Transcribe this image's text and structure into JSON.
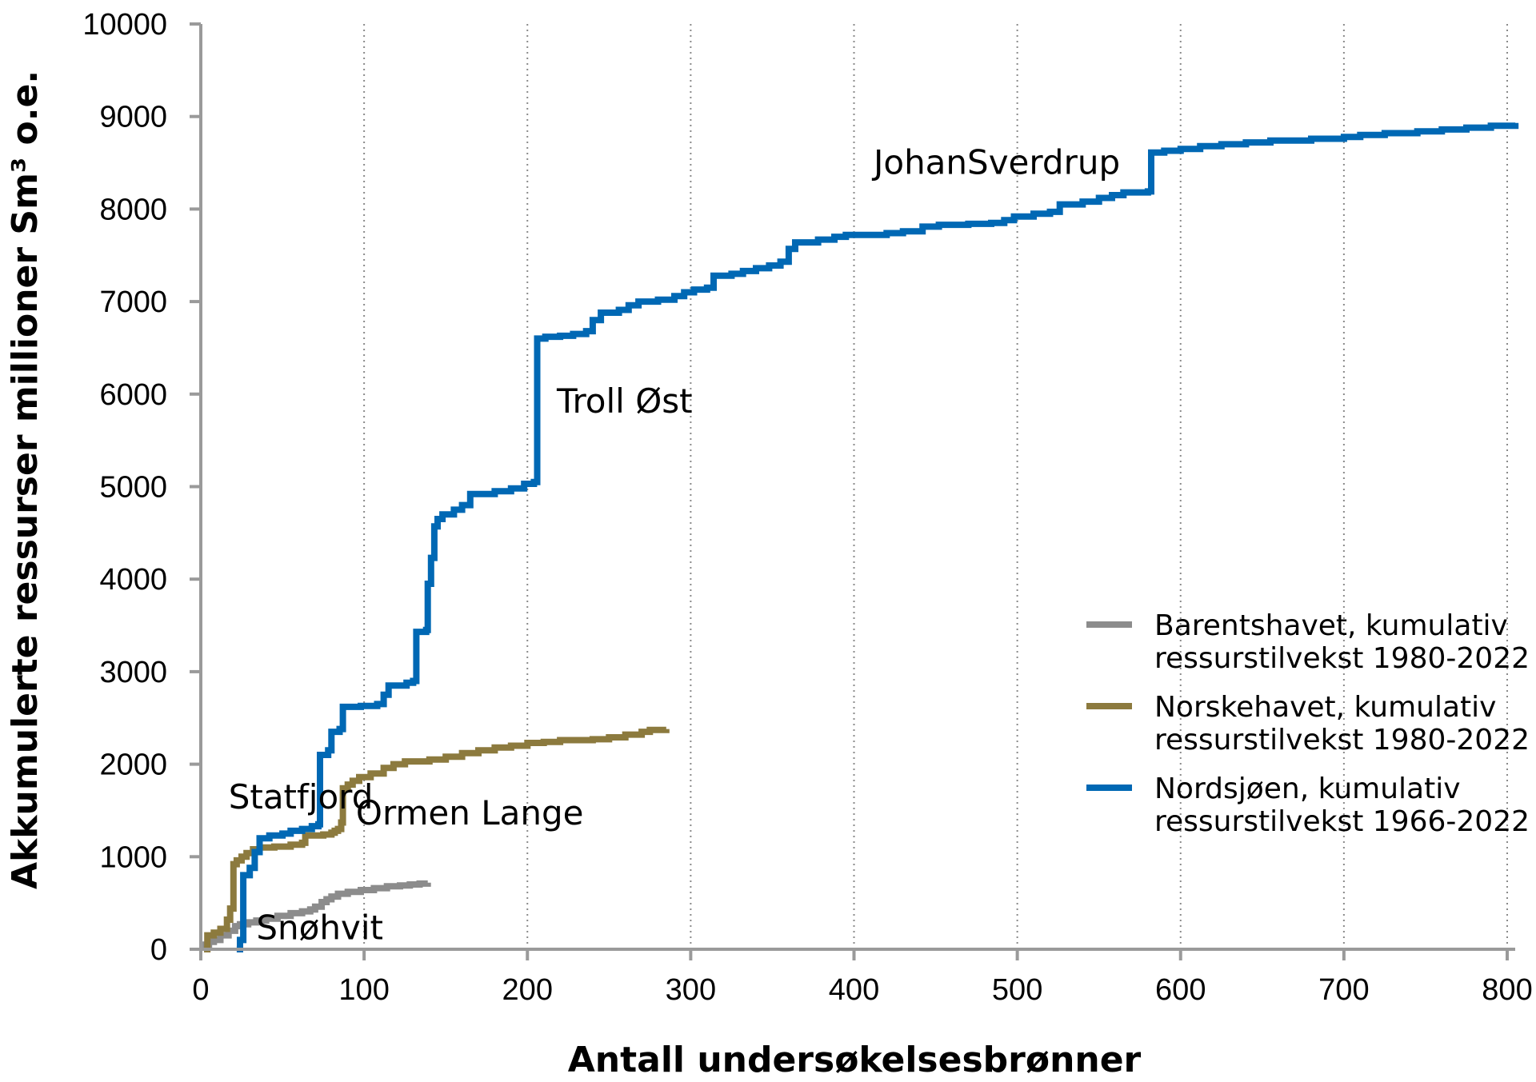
{
  "chart_data": {
    "type": "line",
    "title": "",
    "xlabel": "Antall undersøkelsesbrønner",
    "ylabel": "Akkumulerte ressurser millioner Sm³ o.e.",
    "xlim": [
      0,
      800
    ],
    "ylim": [
      0,
      10000
    ],
    "x_ticks": [
      "0",
      "100",
      "200",
      "300",
      "400",
      "500",
      "600",
      "700",
      "800"
    ],
    "y_ticks": [
      "0",
      "1000",
      "2000",
      "3000",
      "4000",
      "5000",
      "6000",
      "7000",
      "8000",
      "9000",
      "10000"
    ],
    "x_tick_values": [
      0,
      100,
      200,
      300,
      400,
      500,
      600,
      700,
      800
    ],
    "y_tick_values": [
      0,
      1000,
      2000,
      3000,
      4000,
      5000,
      6000,
      7000,
      8000,
      9000,
      10000
    ],
    "grid": "vertical-dotted",
    "legend_position": "right",
    "series": [
      {
        "name": "Barentshavet, kumulativ ressurstilvekst 1980-2022",
        "color": "#8c8c8c",
        "points": [
          [
            2,
            0
          ],
          [
            3,
            50
          ],
          [
            5,
            80
          ],
          [
            8,
            100
          ],
          [
            12,
            150
          ],
          [
            17,
            200
          ],
          [
            21,
            250
          ],
          [
            24,
            270
          ],
          [
            29,
            290
          ],
          [
            34,
            310
          ],
          [
            40,
            330
          ],
          [
            47,
            360
          ],
          [
            55,
            390
          ],
          [
            62,
            410
          ],
          [
            67,
            430
          ],
          [
            70,
            460
          ],
          [
            74,
            510
          ],
          [
            77,
            540
          ],
          [
            80,
            570
          ],
          [
            84,
            600
          ],
          [
            90,
            620
          ],
          [
            98,
            640
          ],
          [
            106,
            660
          ],
          [
            114,
            680
          ],
          [
            122,
            690
          ],
          [
            128,
            700
          ],
          [
            134,
            710
          ],
          [
            139,
            720
          ]
        ]
      },
      {
        "name": "Norskehavet, kumulativ ressurstilvekst 1980-2022",
        "color": "#8c7a3e",
        "points": [
          [
            2,
            0
          ],
          [
            4,
            150
          ],
          [
            8,
            180
          ],
          [
            12,
            220
          ],
          [
            16,
            320
          ],
          [
            18,
            440
          ],
          [
            20,
            920
          ],
          [
            22,
            960
          ],
          [
            25,
            1000
          ],
          [
            28,
            1040
          ],
          [
            32,
            1080
          ],
          [
            36,
            1100
          ],
          [
            45,
            1110
          ],
          [
            55,
            1130
          ],
          [
            62,
            1150
          ],
          [
            64,
            1230
          ],
          [
            75,
            1240
          ],
          [
            80,
            1260
          ],
          [
            82,
            1280
          ],
          [
            84,
            1300
          ],
          [
            86,
            1370
          ],
          [
            87,
            1740
          ],
          [
            90,
            1780
          ],
          [
            93,
            1820
          ],
          [
            97,
            1860
          ],
          [
            104,
            1900
          ],
          [
            112,
            1960
          ],
          [
            118,
            2000
          ],
          [
            125,
            2030
          ],
          [
            140,
            2050
          ],
          [
            150,
            2080
          ],
          [
            160,
            2120
          ],
          [
            170,
            2150
          ],
          [
            180,
            2180
          ],
          [
            190,
            2200
          ],
          [
            200,
            2230
          ],
          [
            210,
            2240
          ],
          [
            220,
            2260
          ],
          [
            230,
            2260
          ],
          [
            240,
            2270
          ],
          [
            250,
            2290
          ],
          [
            260,
            2320
          ],
          [
            270,
            2350
          ],
          [
            275,
            2370
          ],
          [
            285,
            2380
          ]
        ]
      },
      {
        "name": "Nordsjøen, kumulativ ressurstilvekst 1966-2022",
        "color": "#0068b4",
        "points": [
          [
            22,
            0
          ],
          [
            24,
            100
          ],
          [
            26,
            800
          ],
          [
            30,
            880
          ],
          [
            33,
            1050
          ],
          [
            36,
            1200
          ],
          [
            42,
            1230
          ],
          [
            50,
            1250
          ],
          [
            55,
            1280
          ],
          [
            62,
            1300
          ],
          [
            68,
            1330
          ],
          [
            72,
            1350
          ],
          [
            73,
            2100
          ],
          [
            78,
            2150
          ],
          [
            80,
            2350
          ],
          [
            85,
            2380
          ],
          [
            87,
            2620
          ],
          [
            98,
            2630
          ],
          [
            108,
            2650
          ],
          [
            112,
            2750
          ],
          [
            115,
            2850
          ],
          [
            126,
            2880
          ],
          [
            130,
            2900
          ],
          [
            132,
            3430
          ],
          [
            138,
            3450
          ],
          [
            139,
            3950
          ],
          [
            141,
            4230
          ],
          [
            143,
            4570
          ],
          [
            145,
            4650
          ],
          [
            148,
            4700
          ],
          [
            155,
            4750
          ],
          [
            160,
            4800
          ],
          [
            165,
            4920
          ],
          [
            180,
            4950
          ],
          [
            190,
            4980
          ],
          [
            198,
            5030
          ],
          [
            204,
            5050
          ],
          [
            206,
            6600
          ],
          [
            211,
            6620
          ],
          [
            220,
            6630
          ],
          [
            228,
            6650
          ],
          [
            236,
            6680
          ],
          [
            240,
            6800
          ],
          [
            245,
            6880
          ],
          [
            256,
            6910
          ],
          [
            262,
            6960
          ],
          [
            268,
            7000
          ],
          [
            280,
            7020
          ],
          [
            290,
            7060
          ],
          [
            296,
            7100
          ],
          [
            302,
            7130
          ],
          [
            310,
            7150
          ],
          [
            314,
            7280
          ],
          [
            325,
            7300
          ],
          [
            332,
            7330
          ],
          [
            340,
            7360
          ],
          [
            348,
            7390
          ],
          [
            355,
            7430
          ],
          [
            360,
            7570
          ],
          [
            364,
            7640
          ],
          [
            378,
            7670
          ],
          [
            388,
            7700
          ],
          [
            395,
            7720
          ],
          [
            420,
            7740
          ],
          [
            430,
            7760
          ],
          [
            442,
            7810
          ],
          [
            452,
            7830
          ],
          [
            470,
            7840
          ],
          [
            484,
            7850
          ],
          [
            492,
            7880
          ],
          [
            498,
            7920
          ],
          [
            510,
            7950
          ],
          [
            520,
            7970
          ],
          [
            526,
            8050
          ],
          [
            540,
            8080
          ],
          [
            550,
            8120
          ],
          [
            558,
            8150
          ],
          [
            565,
            8180
          ],
          [
            580,
            8190
          ],
          [
            582,
            8610
          ],
          [
            590,
            8630
          ],
          [
            600,
            8650
          ],
          [
            612,
            8680
          ],
          [
            625,
            8700
          ],
          [
            640,
            8720
          ],
          [
            655,
            8740
          ],
          [
            680,
            8760
          ],
          [
            700,
            8780
          ],
          [
            710,
            8800
          ],
          [
            725,
            8820
          ],
          [
            745,
            8840
          ],
          [
            760,
            8860
          ],
          [
            775,
            8880
          ],
          [
            790,
            8900
          ],
          [
            805,
            8930
          ]
        ]
      }
    ],
    "annotations": [
      {
        "text": "Statfjord",
        "x": 17,
        "y": 1520
      },
      {
        "text": "Ormen Lange",
        "x": 95,
        "y": 1350
      },
      {
        "text": "Troll Øst",
        "x": 218,
        "y": 5800
      },
      {
        "text": "JohanSverdrup",
        "x": 412,
        "y": 8380
      },
      {
        "text": "Snøhvit",
        "x": 34,
        "y": 110
      }
    ],
    "legend_entries": [
      {
        "line1": "Barentshavet, kumulativ",
        "line2": "ressurstilvekst 1980-2022",
        "color": "#8c8c8c"
      },
      {
        "line1": "Norskehavet, kumulativ",
        "line2": "ressurstilvekst 1980-2022",
        "color": "#8c7a3e"
      },
      {
        "line1": "Nordsjøen, kumulativ",
        "line2": "ressurstilvekst 1966-2022",
        "color": "#0068b4"
      }
    ]
  }
}
